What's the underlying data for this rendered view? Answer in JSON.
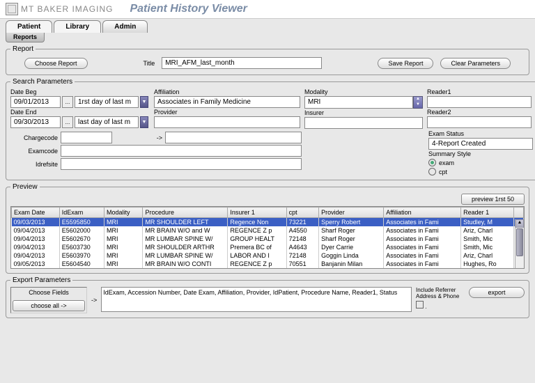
{
  "header": {
    "brand": "MT BAKER IMAGING",
    "title": "Patient History Viewer"
  },
  "tabs": {
    "patient": "Patient",
    "library": "Library",
    "admin": "Admin",
    "reports": "Reports"
  },
  "report": {
    "legend": "Report",
    "choose": "Choose Report",
    "title_label": "Title",
    "title_value": "MRI_AFM_last_month",
    "save": "Save Report",
    "clear": "Clear Parameters"
  },
  "params": {
    "legend": "Search Parameters",
    "date_beg_label": "Date Beg",
    "date_beg": "09/01/2013",
    "date_beg_dd": "1rst day of last m",
    "date_end_label": "Date End",
    "date_end": "09/30/2013",
    "date_end_dd": "last day of last m",
    "affiliation_label": "Affiliation",
    "affiliation": "Associates in Family Medicine",
    "provider_label": "Provider",
    "provider": "",
    "modality_label": "Modality",
    "modality": "MRI",
    "insurer_label": "Insurer",
    "insurer": "",
    "reader1_label": "Reader1",
    "reader1": "",
    "reader2_label": "Reader2",
    "reader2": "",
    "exam_status_label": "Exam Status",
    "exam_status": "4-Report Created",
    "summary_label": "Summary Style",
    "summary_exam": "exam",
    "summary_cpt": "cpt",
    "chargecode_label": "Chargecode",
    "chargecode1": "",
    "chargecode2": "",
    "examcode_label": "Examcode",
    "examcode": "",
    "idrefsite_label": "Idrefsite",
    "idrefsite": "",
    "arrow": "->"
  },
  "preview": {
    "legend": "Preview",
    "btn": "preview 1rst 50",
    "cols": [
      "Exam Date",
      "IdExam",
      "Modality",
      "Procedure",
      "Insurer 1",
      "cpt",
      "Provider",
      "Affiliation",
      "Reader 1"
    ],
    "rows": [
      [
        "09/03/2013",
        "E5595850",
        "MRI",
        "MR SHOULDER LEFT",
        "Regence  Non",
        "73221",
        "Sperry Robert",
        "Associates in Fami",
        "Studley, M"
      ],
      [
        "09/04/2013",
        "E5602000",
        "MRI",
        "MR BRAIN W/O and W",
        "REGENCE  Z p",
        "A4550",
        "Sharf Roger",
        "Associates in Fami",
        "Ariz, Charl"
      ],
      [
        "09/04/2013",
        "E5602670",
        "MRI",
        "MR LUMBAR SPINE W/",
        "GROUP HEALT",
        "72148",
        "Sharf Roger",
        "Associates in Fami",
        "Smith, Mic"
      ],
      [
        "09/04/2013",
        "E5603730",
        "MRI",
        "MR SHOULDER ARTHR",
        "Premera BC of",
        "A4643",
        "Dyer Carrie",
        "Associates in Fami",
        "Smith, Mic"
      ],
      [
        "09/04/2013",
        "E5603970",
        "MRI",
        "MR LUMBAR SPINE W/",
        "  LABOR AND I",
        "72148",
        "Goggin Linda",
        "Associates in Fami",
        "Ariz, Charl"
      ],
      [
        "09/05/2013",
        "E5604540",
        "MRI",
        "MR BRAIN W/O CONTI",
        "REGENCE  Z p",
        "70551",
        "Banjanin Milan",
        "Associates in Fami",
        "Hughes, Ro"
      ]
    ],
    "widths": [
      "62",
      "58",
      "50",
      "110",
      "76",
      "42",
      "84",
      "100",
      "68"
    ]
  },
  "export": {
    "legend": "Export Parameters",
    "choose_fields": "Choose Fields",
    "choose_all": "choose all ->",
    "arrow": "->",
    "fields": "IdExam, Accession Number, Date Exam, Affiliation, Provider, IdPatient, Procedure Name, Reader1, Status",
    "include_label": "Include Referrer Address & Phone",
    "export_btn": "export"
  },
  "colors": {
    "sel_bg": "#3b5fc4"
  }
}
